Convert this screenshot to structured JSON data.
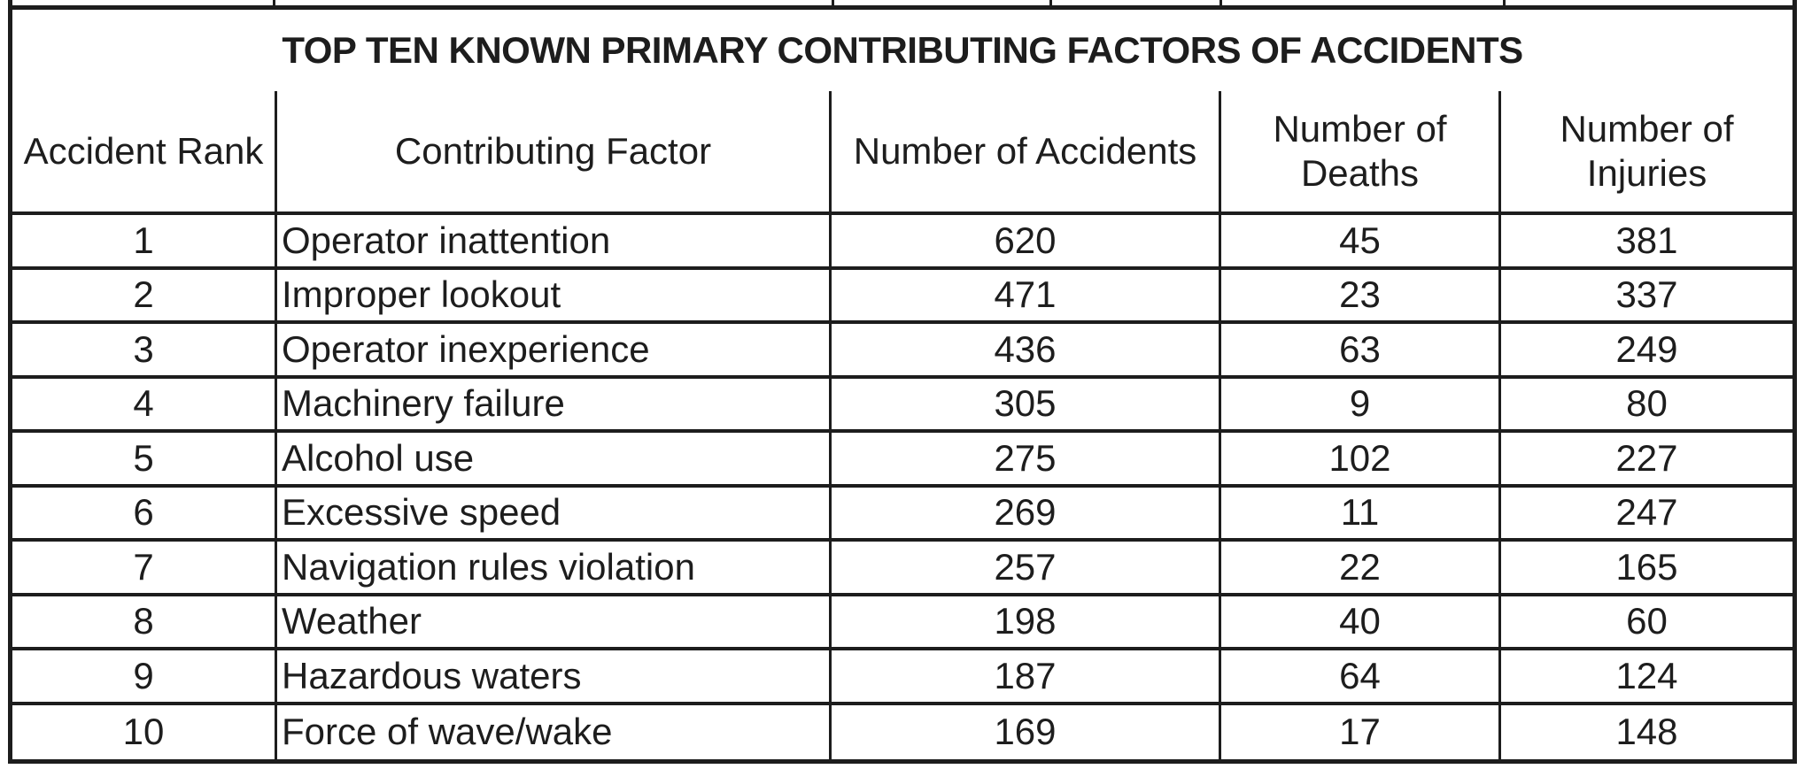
{
  "document": {
    "title": "TOP TEN KNOWN PRIMARY CONTRIBUTING FACTORS OF ACCIDENTS"
  },
  "table": {
    "columns": [
      "Accident Rank",
      "Contributing Factor",
      "Number of Accidents",
      "Number of Deaths",
      "Number of Injuries"
    ],
    "rows": [
      {
        "rank": "1",
        "factor": "Operator inattention",
        "accidents": "620",
        "deaths": "45",
        "injuries": "381"
      },
      {
        "rank": "2",
        "factor": "Improper lookout",
        "accidents": "471",
        "deaths": "23",
        "injuries": "337"
      },
      {
        "rank": "3",
        "factor": "Operator inexperience",
        "accidents": "436",
        "deaths": "63",
        "injuries": "249"
      },
      {
        "rank": "4",
        "factor": "Machinery failure",
        "accidents": "305",
        "deaths": "9",
        "injuries": "80"
      },
      {
        "rank": "5",
        "factor": "Alcohol use",
        "accidents": "275",
        "deaths": "102",
        "injuries": "227"
      },
      {
        "rank": "6",
        "factor": "Excessive speed",
        "accidents": "269",
        "deaths": "11",
        "injuries": "247"
      },
      {
        "rank": "7",
        "factor": "Navigation rules violation",
        "accidents": "257",
        "deaths": "22",
        "injuries": "165"
      },
      {
        "rank": "8",
        "factor": "Weather",
        "accidents": "198",
        "deaths": "40",
        "injuries": "60"
      },
      {
        "rank": "9",
        "factor": "Hazardous waters",
        "accidents": "187",
        "deaths": "64",
        "injuries": "124"
      },
      {
        "rank": "10",
        "factor": "Force of wave/wake",
        "accidents": "169",
        "deaths": "17",
        "injuries": "148"
      }
    ]
  },
  "colors": {
    "ink": "#1d1d1d",
    "paper": "#ffffff"
  }
}
